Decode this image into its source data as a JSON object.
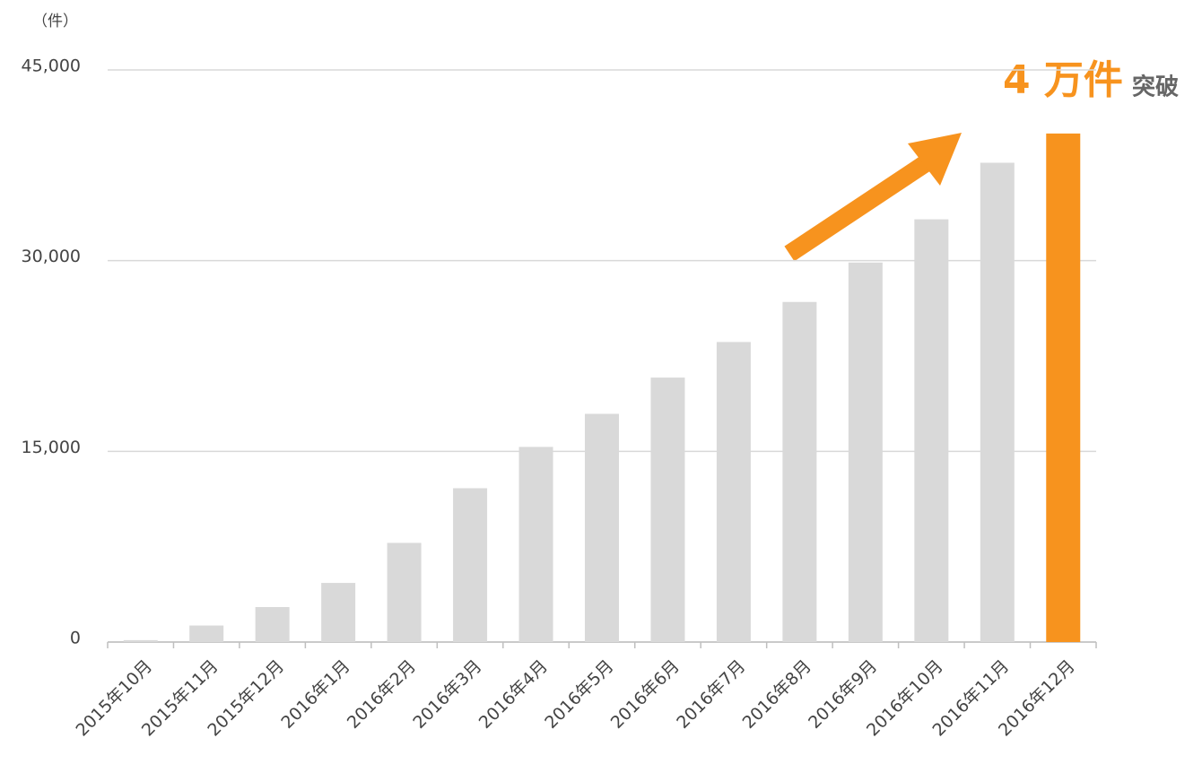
{
  "chart_data": {
    "type": "bar",
    "unit_label": "（件）",
    "annotation": {
      "main": "4 万件",
      "suffix": "突破"
    },
    "categories": [
      "2015年10月",
      "2015年11月",
      "2015年12月",
      "2016年1月",
      "2016年2月",
      "2016年3月",
      "2016年4月",
      "2016年5月",
      "2016年6月",
      "2016年7月",
      "2016年8月",
      "2016年9月",
      "2016年10月",
      "2016年11月",
      "2016年12月"
    ],
    "values": [
      150,
      1300,
      2750,
      4650,
      7800,
      12100,
      15350,
      17950,
      20800,
      23600,
      26750,
      29850,
      33250,
      37700,
      40000
    ],
    "colors": [
      "#d9d9d9",
      "#d9d9d9",
      "#d9d9d9",
      "#d9d9d9",
      "#d9d9d9",
      "#d9d9d9",
      "#d9d9d9",
      "#d9d9d9",
      "#d9d9d9",
      "#d9d9d9",
      "#d9d9d9",
      "#d9d9d9",
      "#d9d9d9",
      "#d9d9d9",
      "#f7931e"
    ],
    "ylim": [
      0,
      45000
    ],
    "yticks": [
      0,
      {
        "value": 15000,
        "label": "15,000"
      },
      {
        "value": 30000,
        "label": "30,000"
      },
      {
        "value": 45000,
        "label": "45,000"
      }
    ],
    "grid": true
  }
}
